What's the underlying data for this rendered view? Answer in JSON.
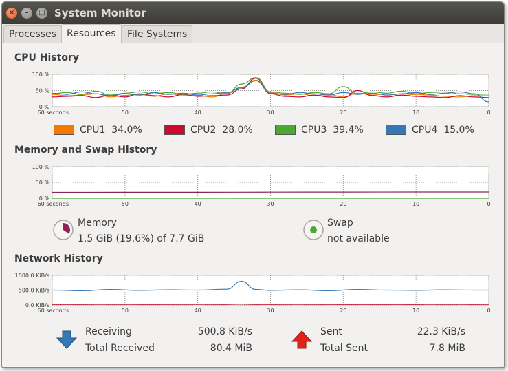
{
  "window": {
    "title": "System Monitor"
  },
  "tabs": [
    {
      "label": "Processes",
      "active": false
    },
    {
      "label": "Resources",
      "active": true
    },
    {
      "label": "File Systems",
      "active": false
    }
  ],
  "cpu": {
    "title": "CPU History",
    "y_ticks": [
      "100 %",
      "50 %",
      "0 %"
    ],
    "x_ticks": [
      "60 seconds",
      "50",
      "40",
      "30",
      "20",
      "10",
      "0"
    ],
    "legend": [
      {
        "name": "CPU1",
        "value": "34.0%",
        "color": "#f57900"
      },
      {
        "name": "CPU2",
        "value": "28.0%",
        "color": "#cc0b2f"
      },
      {
        "name": "CPU3",
        "value": "39.4%",
        "color": "#4ca733"
      },
      {
        "name": "CPU4",
        "value": "15.0%",
        "color": "#3479b6"
      }
    ]
  },
  "memory": {
    "title": "Memory and Swap History",
    "y_ticks": [
      "100 %",
      "50 %",
      "0 %"
    ],
    "x_ticks": [
      "60 seconds",
      "50",
      "40",
      "30",
      "20",
      "10",
      "0"
    ],
    "memory_label": "Memory",
    "memory_value": "1.5 GiB (19.6%) of 7.7 GiB",
    "memory_color": "#8d2654",
    "swap_label": "Swap",
    "swap_value": "not available",
    "swap_color": "#4ca733"
  },
  "network": {
    "title": "Network History",
    "y_ticks": [
      "1000.0 KiB/s",
      "500.0 KiB/s",
      "0.0 KiB/s"
    ],
    "x_ticks": [
      "60 seconds",
      "50",
      "40",
      "30",
      "20",
      "10",
      "0"
    ],
    "receiving_label": "Receiving",
    "receiving_value": "500.8 KiB/s",
    "total_received_label": "Total Received",
    "total_received_value": "80.4 MiB",
    "sent_label": "Sent",
    "sent_value": "22.3 KiB/s",
    "total_sent_label": "Total Sent",
    "total_sent_value": "7.8 MiB",
    "receive_color": "#3479b6",
    "send_color": "#cc0b2f"
  },
  "chart_data": [
    {
      "type": "line",
      "title": "CPU History",
      "x": [
        60,
        58,
        56,
        54,
        52,
        50,
        48,
        46,
        44,
        42,
        40,
        38,
        36,
        34,
        32,
        30,
        28,
        26,
        24,
        22,
        20,
        18,
        16,
        14,
        12,
        10,
        8,
        6,
        4,
        2,
        0
      ],
      "ylim": [
        0,
        100
      ],
      "series": [
        {
          "name": "CPU1",
          "values": [
            38,
            34,
            36,
            40,
            30,
            35,
            38,
            32,
            40,
            36,
            35,
            30,
            42,
            60,
            82,
            44,
            36,
            40,
            34,
            38,
            30,
            42,
            36,
            40,
            34,
            38,
            36,
            32,
            30,
            34,
            34
          ]
        },
        {
          "name": "CPU2",
          "values": [
            30,
            32,
            34,
            28,
            36,
            30,
            40,
            34,
            30,
            38,
            32,
            34,
            36,
            55,
            88,
            40,
            32,
            30,
            36,
            30,
            28,
            50,
            34,
            30,
            36,
            32,
            30,
            28,
            34,
            30,
            28
          ]
        },
        {
          "name": "CPU3",
          "values": [
            40,
            44,
            38,
            48,
            36,
            42,
            46,
            40,
            44,
            38,
            42,
            46,
            40,
            70,
            90,
            46,
            42,
            38,
            44,
            40,
            62,
            40,
            46,
            42,
            48,
            40,
            44,
            46,
            40,
            38,
            39
          ]
        },
        {
          "name": "CPU4",
          "values": [
            42,
            38,
            46,
            40,
            34,
            40,
            36,
            44,
            38,
            42,
            36,
            40,
            44,
            58,
            80,
            42,
            38,
            44,
            40,
            36,
            44,
            38,
            42,
            36,
            40,
            44,
            38,
            42,
            46,
            40,
            15
          ]
        }
      ]
    },
    {
      "type": "line",
      "title": "Memory and Swap History",
      "x": [
        60,
        50,
        40,
        30,
        20,
        10,
        0
      ],
      "ylim": [
        0,
        100
      ],
      "series": [
        {
          "name": "Memory",
          "values": [
            18.5,
            18.6,
            18.8,
            19.2,
            19.4,
            19.5,
            19.6
          ]
        },
        {
          "name": "Swap",
          "values": [
            0,
            0,
            0,
            0,
            0,
            0,
            0
          ]
        }
      ]
    },
    {
      "type": "line",
      "title": "Network History",
      "x": [
        60,
        56,
        52,
        48,
        44,
        40,
        36,
        34,
        32,
        30,
        26,
        22,
        18,
        14,
        10,
        6,
        2,
        0
      ],
      "ylim": [
        0,
        1000
      ],
      "series": [
        {
          "name": "Receiving",
          "values": [
            500,
            480,
            520,
            490,
            510,
            500,
            530,
            800,
            520,
            490,
            510,
            480,
            520,
            500,
            490,
            510,
            500,
            500.8
          ]
        },
        {
          "name": "Sent",
          "values": [
            22,
            20,
            24,
            22,
            21,
            23,
            22,
            30,
            22,
            21,
            23,
            22,
            22,
            21,
            22,
            23,
            22,
            22.3
          ]
        }
      ]
    }
  ]
}
